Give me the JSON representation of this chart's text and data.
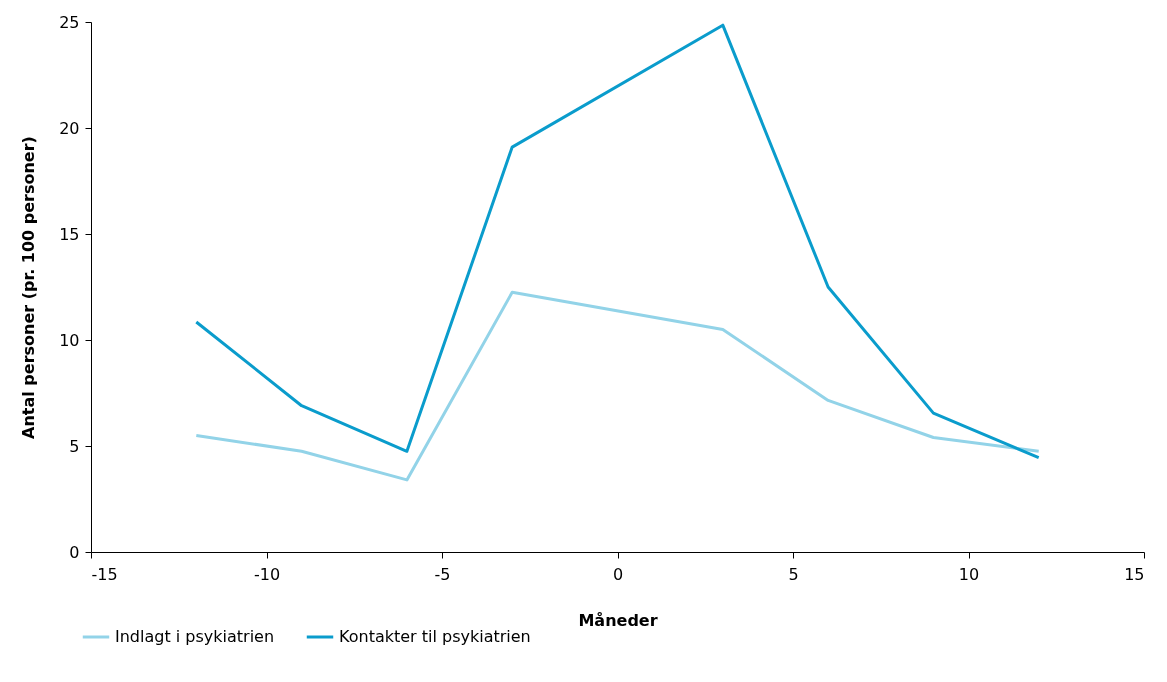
{
  "chart_data": {
    "type": "line",
    "xlabel": "Måneder",
    "ylabel": "Antal personer (pr. 100 personer)",
    "x": [
      -12,
      -9,
      -6,
      -3,
      3,
      6,
      9,
      12
    ],
    "series": [
      {
        "name": "Indlagt i psykiatrien",
        "color": "#92d3e8",
        "values": [
          5.5,
          4.75,
          3.4,
          12.25,
          10.5,
          7.15,
          5.4,
          4.75
        ]
      },
      {
        "name": "Kontakter til psykiatrien",
        "color": "#0a9ccc",
        "values": [
          10.85,
          6.9,
          4.75,
          19.1,
          24.85,
          12.5,
          6.55,
          4.45
        ]
      }
    ],
    "xlim": [
      -15,
      15
    ],
    "xticks": [
      -15,
      -10,
      -5,
      0,
      5,
      10,
      15
    ],
    "ylim": [
      0,
      25
    ],
    "yticks": [
      0,
      5,
      10,
      15,
      20,
      25
    ],
    "grid": false,
    "legend": "bottom",
    "marker": "none",
    "line_style": "solid"
  }
}
